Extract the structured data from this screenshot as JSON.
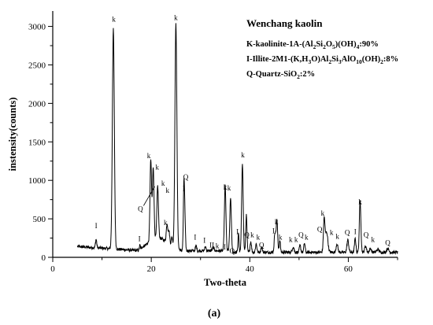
{
  "chart_data": {
    "type": "line",
    "xlabel": "Two-theta",
    "ylabel": "instensity(counts)",
    "xlim": [
      0,
      70
    ],
    "ylim": [
      0,
      3200
    ],
    "xticks": [
      "0",
      "20",
      "40",
      "60"
    ],
    "yticks": [
      "0",
      "500",
      "1000",
      "1500",
      "2000",
      "2500",
      "3000"
    ],
    "legend_title": "Wenchang kaolin",
    "legend_lines": [
      [
        {
          "t": "K-kaolinite-1A-(Al"
        },
        {
          "t": "2",
          "s": "sub"
        },
        {
          "t": "Si"
        },
        {
          "t": "2",
          "s": "sub"
        },
        {
          "t": "O"
        },
        {
          "t": "5",
          "s": "sub"
        },
        {
          "t": ")(OH)"
        },
        {
          "t": "4",
          "s": "sub"
        },
        {
          "t": ":90%"
        }
      ],
      [
        {
          "t": "I-Illite-2M1-(K,H"
        },
        {
          "t": "3",
          "s": "sub"
        },
        {
          "t": "O)Al"
        },
        {
          "t": "2",
          "s": "sub"
        },
        {
          "t": "Si"
        },
        {
          "t": "3",
          "s": "sub"
        },
        {
          "t": "AlO"
        },
        {
          "t": "10",
          "s": "sub"
        },
        {
          "t": "(OH)"
        },
        {
          "t": "2",
          "s": "sub"
        },
        {
          "t": ":8%"
        }
      ],
      [
        {
          "t": "Q-Quartz-SiO"
        },
        {
          "t": "2",
          "s": "sub"
        },
        {
          "t": ":2%"
        }
      ]
    ],
    "caption": "(a)",
    "peaks": [
      {
        "x": 12.3,
        "y": 2960,
        "label": "k",
        "lx": 12.4,
        "ly": 3060
      },
      {
        "x": 25.0,
        "y": 3030,
        "label": "k",
        "lx": 25.0,
        "ly": 3080
      },
      {
        "x": 19.9,
        "y": 1270,
        "label": "k",
        "lx": 19.5,
        "ly": 1290
      },
      {
        "x": 20.4,
        "y": 1170,
        "label": "k",
        "lx": 21.2,
        "ly": 1140
      },
      {
        "x": 21.3,
        "y": 930,
        "label": "k",
        "lx": 22.4,
        "ly": 930
      },
      {
        "x": 23.2,
        "y": 430,
        "label": "k",
        "lx": 23.3,
        "ly": 840
      },
      {
        "x": 26.7,
        "y": 870,
        "label": "Q",
        "lx": 27.0,
        "ly": 1010
      },
      {
        "x": 35.0,
        "y": 930,
        "label": "k",
        "lx": 35.8,
        "ly": 870
      },
      {
        "x": 36.1,
        "y": 770,
        "label": "k",
        "lx": 35.0,
        "ly": 880
      },
      {
        "x": 38.5,
        "y": 1230,
        "label": "k",
        "lx": 38.6,
        "ly": 1300
      },
      {
        "x": 45.5,
        "y": 480,
        "label": "k",
        "lx": 45.4,
        "ly": 430
      },
      {
        "x": 55.1,
        "y": 490,
        "label": "k",
        "lx": 54.8,
        "ly": 540
      },
      {
        "x": 62.4,
        "y": 740,
        "label": "k",
        "lx": 62.4,
        "ly": 690
      }
    ],
    "small_labels": [
      {
        "label": "I",
        "x": 8.8,
        "y": 380
      },
      {
        "label": "I",
        "x": 17.6,
        "y": 210
      },
      {
        "label": "k",
        "x": 22.9,
        "y": 420
      },
      {
        "label": "I",
        "x": 26.6,
        "y": 860
      },
      {
        "label": "I",
        "x": 28.9,
        "y": 230
      },
      {
        "label": "I",
        "x": 30.8,
        "y": 190
      },
      {
        "label": "II",
        "x": 32.3,
        "y": 130
      },
      {
        "label": "k",
        "x": 33.4,
        "y": 120
      },
      {
        "label": "I",
        "x": 34.9,
        "y": 100
      },
      {
        "label": "Q",
        "x": 36.4,
        "y": 50
      },
      {
        "label": "I",
        "x": 37.5,
        "y": 300
      },
      {
        "label": "Q",
        "x": 39.4,
        "y": 260
      },
      {
        "label": "k",
        "x": 40.5,
        "y": 260
      },
      {
        "label": "k",
        "x": 41.7,
        "y": 230
      },
      {
        "label": "Q",
        "x": 42.4,
        "y": 130
      },
      {
        "label": "I",
        "x": 44.8,
        "y": 310
      },
      {
        "label": "k",
        "x": 46.2,
        "y": 230
      },
      {
        "label": "k",
        "x": 48.3,
        "y": 200
      },
      {
        "label": "k",
        "x": 49.4,
        "y": 200
      },
      {
        "label": "Q",
        "x": 50.4,
        "y": 260
      },
      {
        "label": "k",
        "x": 51.5,
        "y": 230
      },
      {
        "label": "Q",
        "x": 54.2,
        "y": 330
      },
      {
        "label": "k",
        "x": 56.6,
        "y": 290
      },
      {
        "label": "k",
        "x": 57.8,
        "y": 240
      },
      {
        "label": "Q",
        "x": 59.8,
        "y": 290
      },
      {
        "label": "I",
        "x": 61.4,
        "y": 300
      },
      {
        "label": "Q",
        "x": 63.6,
        "y": 260
      },
      {
        "label": "k",
        "x": 65.0,
        "y": 200
      },
      {
        "label": "Q",
        "x": 68.0,
        "y": 160
      }
    ],
    "callout": {
      "label": "Q",
      "x": 17.8,
      "y": 630,
      "to_x": 20.7,
      "to_y": 920
    }
  }
}
